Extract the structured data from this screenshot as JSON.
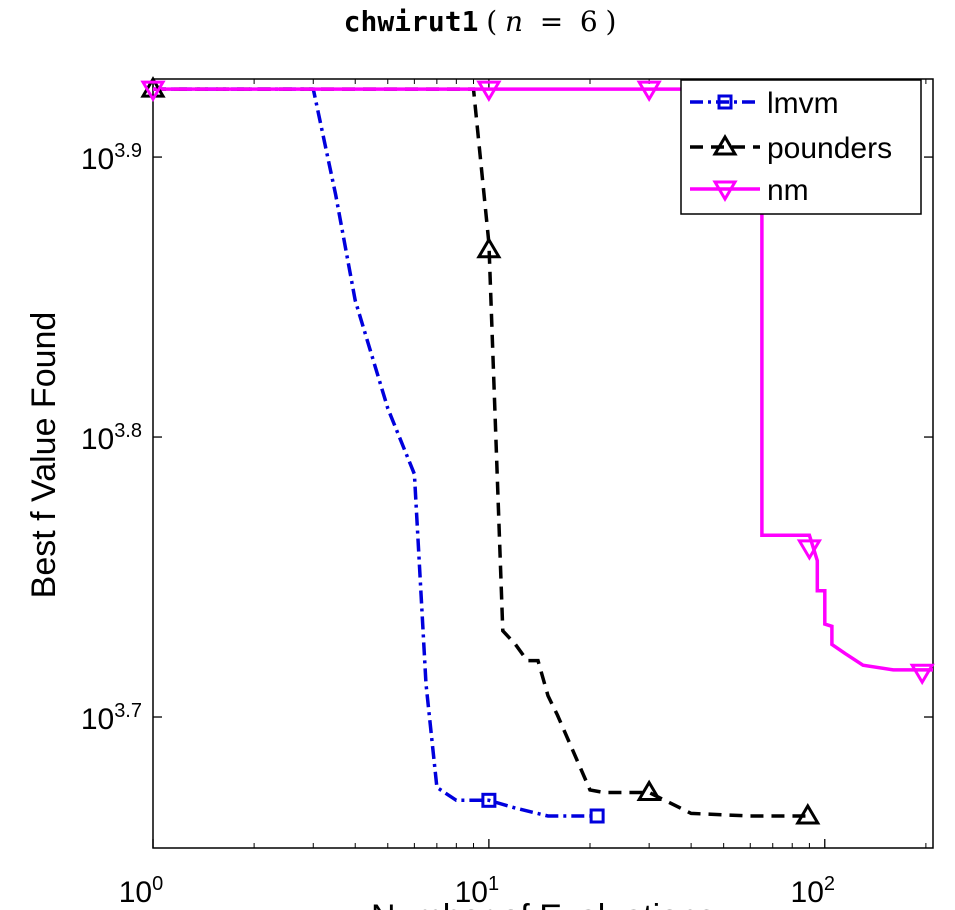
{
  "chart_data": {
    "type": "line",
    "title": {
      "name": "chwirut1",
      "open": "(",
      "var": "n",
      "eq": " = ",
      "val": "6",
      "close": ")"
    },
    "xlabel": "Number of Evaluations",
    "ylabel": "Best f Value Found",
    "xscale": "log",
    "yscale": "log",
    "xlim": [
      1,
      210
    ],
    "ylim": [
      4500,
      8470
    ],
    "grid": false,
    "legend_position": "top-right",
    "x_ticks": [
      {
        "value": 1,
        "base": "10",
        "exp": "0"
      },
      {
        "value": 10,
        "base": "10",
        "exp": "1"
      },
      {
        "value": 100,
        "base": "10",
        "exp": "2"
      }
    ],
    "y_ticks": [
      {
        "value": 5011.87,
        "base": "10",
        "exp": "3.7"
      },
      {
        "value": 6309.57,
        "base": "10",
        "exp": "3.8"
      },
      {
        "value": 7943.28,
        "base": "10",
        "exp": "3.9"
      }
    ],
    "series": [
      {
        "name": "lmvm",
        "color": "#0000dd",
        "dash": "dashdot",
        "marker": "square",
        "x": [
          1,
          3,
          3.5,
          4,
          5,
          6,
          6.5,
          7,
          8,
          10,
          12,
          15,
          21
        ],
        "y": [
          8400,
          8400,
          7700,
          7060,
          6460,
          6120,
          5150,
          4730,
          4680,
          4680,
          4650,
          4620,
          4620
        ],
        "marker_x": [
          10,
          21
        ],
        "marker_y": [
          4680,
          4620
        ]
      },
      {
        "name": "pounders",
        "color": "#000000",
        "dash": "dashed",
        "marker": "triangle-up",
        "x": [
          1,
          9,
          10,
          11,
          12,
          13,
          14,
          15,
          16,
          20,
          22,
          30,
          40,
          60,
          89
        ],
        "y": [
          8400,
          8400,
          7400,
          5380,
          5320,
          5250,
          5250,
          5100,
          5020,
          4720,
          4710,
          4710,
          4630,
          4620,
          4620
        ],
        "marker_x": [
          1,
          10,
          30,
          89
        ],
        "marker_y": [
          8400,
          7360,
          4710,
          4620
        ]
      },
      {
        "name": "nm",
        "color": "#ff00ff",
        "dash": "solid",
        "marker": "triangle-down",
        "x": [
          1,
          65,
          65,
          90,
          95,
          95,
          100,
          100,
          105,
          105,
          115,
          130,
          160,
          210
        ],
        "y": [
          8400,
          8400,
          5820,
          5820,
          5700,
          5560,
          5560,
          5410,
          5400,
          5320,
          5280,
          5230,
          5210,
          5210
        ],
        "marker_x": [
          1,
          10,
          30,
          90,
          195
        ],
        "marker_y": [
          8400,
          8400,
          8400,
          5760,
          5200
        ]
      }
    ]
  }
}
